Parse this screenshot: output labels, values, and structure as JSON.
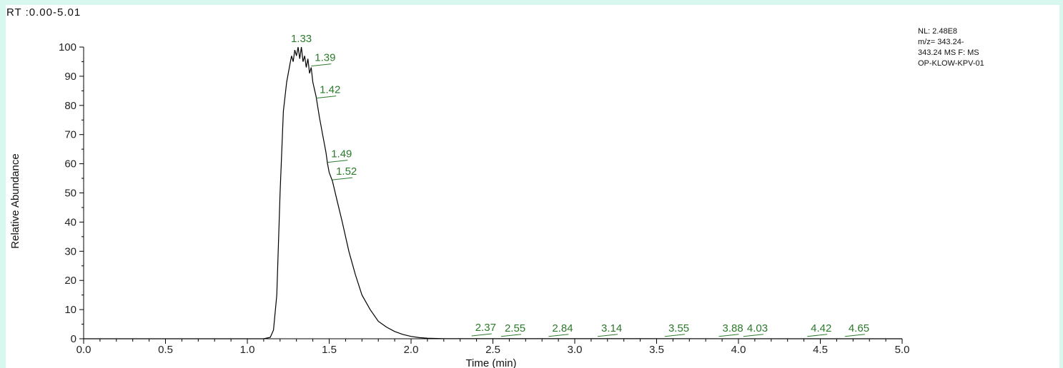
{
  "range_label": "RT :0.00-5.01",
  "info_lines": [
    "NL: 2.48E8",
    "m/z= 343.24-",
    "343.24 MS  F: MS",
    "OP-KLOW-KPV-01"
  ],
  "colors": {
    "background": "#d8f7ee",
    "trace": "#000000",
    "peak_label": "#2a7a2a",
    "axis": "#000000"
  },
  "chart_data": {
    "type": "line",
    "xlabel": "Time (min)",
    "ylabel": "Relative Abundance",
    "xlim": [
      0,
      5
    ],
    "ylim": [
      0,
      100
    ],
    "xticks": [
      "0.0",
      "0.5",
      "1.0",
      "1.5",
      "2.0",
      "2.5",
      "3.0",
      "3.5",
      "4.0",
      "4.5",
      "5.0"
    ],
    "yticks": [
      "0",
      "10",
      "20",
      "30",
      "40",
      "50",
      "60",
      "70",
      "80",
      "90",
      "100"
    ],
    "grid": false,
    "series": [
      {
        "x": [
          0.0,
          1.1,
          1.14,
          1.16,
          1.18,
          1.2,
          1.22,
          1.24,
          1.26,
          1.27,
          1.28,
          1.29,
          1.3,
          1.31,
          1.32,
          1.33,
          1.34,
          1.35,
          1.36,
          1.37,
          1.38,
          1.39,
          1.4,
          1.42,
          1.44,
          1.46,
          1.48,
          1.49,
          1.5,
          1.52,
          1.55,
          1.58,
          1.62,
          1.66,
          1.7,
          1.75,
          1.8,
          1.85,
          1.9,
          1.95,
          2.0,
          2.05,
          2.1,
          2.2,
          5.0
        ],
        "y": [
          0,
          0,
          0.5,
          3,
          15,
          50,
          78,
          88,
          94,
          97,
          95,
          99,
          97,
          100,
          96,
          100,
          95,
          97,
          93,
          96,
          91,
          93,
          88,
          83,
          76,
          70,
          64,
          60,
          57,
          54,
          47,
          40,
          30,
          22,
          15,
          10,
          6,
          4,
          2.5,
          1.5,
          0.8,
          0.4,
          0.2,
          0.05,
          0
        ]
      }
    ],
    "peak_annotations": [
      {
        "label": "1.33",
        "x": 1.33,
        "y": 100
      },
      {
        "label": "1.39",
        "x": 1.39,
        "y": 93
      },
      {
        "label": "1.42",
        "x": 1.42,
        "y": 82
      },
      {
        "label": "1.49",
        "x": 1.49,
        "y": 60
      },
      {
        "label": "1.52",
        "x": 1.52,
        "y": 54
      },
      {
        "label": "2.37",
        "x": 2.37,
        "y": 0.5
      },
      {
        "label": "2.55",
        "x": 2.55,
        "y": 0.3
      },
      {
        "label": "2.84",
        "x": 2.84,
        "y": 0.3
      },
      {
        "label": "3.14",
        "x": 3.14,
        "y": 0.3
      },
      {
        "label": "3.55",
        "x": 3.55,
        "y": 0.3
      },
      {
        "label": "3.88",
        "x": 3.88,
        "y": 0.3
      },
      {
        "label": "4.03",
        "x": 4.03,
        "y": 0.3
      },
      {
        "label": "4.42",
        "x": 4.42,
        "y": 0.3
      },
      {
        "label": "4.65",
        "x": 4.65,
        "y": 0.3
      }
    ]
  }
}
